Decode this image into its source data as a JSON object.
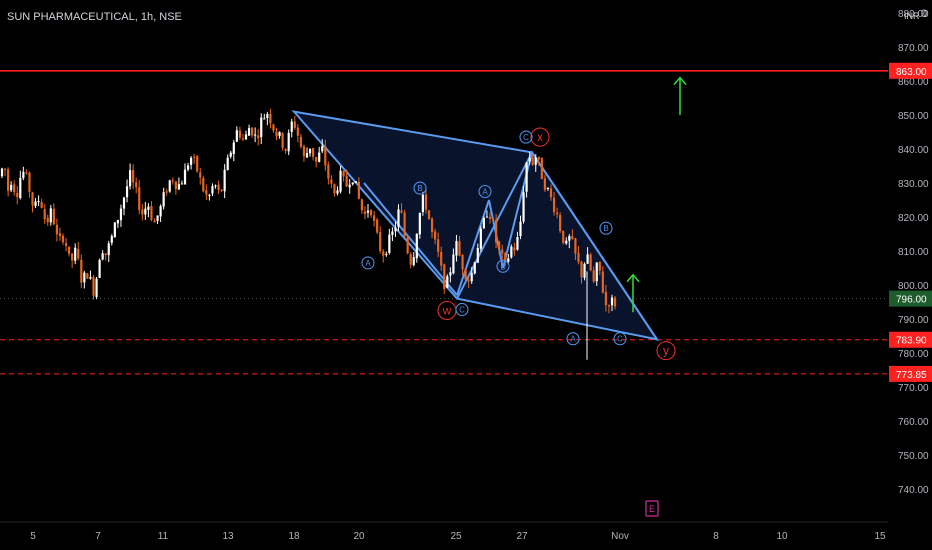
{
  "header": {
    "symbol": "SUN PHARMACEUTICAL",
    "interval": "1h",
    "exchange": "NSE",
    "separator": ", ",
    "currency": "INR",
    "corner_glyph": "0"
  },
  "colors": {
    "background": "#000000",
    "bull": "#ffffff",
    "bear": "#e8651d",
    "pattern_line": "#5a9bf0",
    "pattern_fill": "#0a1530",
    "resistance": "#ff2020",
    "arrow": "#33dd44",
    "last_price_bg": "#1d5d2c",
    "axis_text": "#b2b5be",
    "wave_red": "#e0302a",
    "wave_blue": "#4d8fe8",
    "event_marker": "#d0309a"
  },
  "chart_data": {
    "type": "candlestick",
    "y_axis": {
      "min": 730,
      "max": 878,
      "ticks": [
        740,
        750,
        760,
        770,
        780,
        790,
        800,
        810,
        820,
        830,
        840,
        850,
        860,
        870,
        880
      ]
    },
    "x_axis": {
      "labels": [
        "5",
        "7",
        "11",
        "13",
        "18",
        "20",
        "25",
        "27",
        "Nov",
        "8",
        "10",
        "15"
      ]
    },
    "price_labels": [
      {
        "text": "863.00",
        "value": 863.0,
        "style": "solid-red"
      },
      {
        "text": "796.00",
        "value": 796.0,
        "style": "last-price"
      },
      {
        "text": "783.90",
        "value": 783.9,
        "style": "dashed-red"
      },
      {
        "text": "773.85",
        "value": 773.85,
        "style": "dashed-red"
      }
    ],
    "horizontal_levels": [
      {
        "value": 863.0,
        "style": "solid"
      },
      {
        "value": 783.9,
        "style": "dashed"
      },
      {
        "value": 773.85,
        "style": "dashed"
      },
      {
        "value": 796.0,
        "style": "dotted-grey"
      }
    ],
    "candle_path": [
      [
        0,
        832
      ],
      [
        4,
        836
      ],
      [
        8,
        828
      ],
      [
        12,
        832
      ],
      [
        16,
        826
      ],
      [
        22,
        834
      ],
      [
        28,
        830
      ],
      [
        34,
        822
      ],
      [
        40,
        826
      ],
      [
        46,
        818
      ],
      [
        52,
        822
      ],
      [
        58,
        812
      ],
      [
        64,
        815
      ],
      [
        70,
        806
      ],
      [
        76,
        810
      ],
      [
        82,
        801
      ],
      [
        88,
        804
      ],
      [
        93,
        798
      ],
      [
        97,
        803
      ],
      [
        101,
        812
      ],
      [
        106,
        809
      ],
      [
        112,
        814
      ],
      [
        118,
        820
      ],
      [
        124,
        826
      ],
      [
        130,
        832
      ],
      [
        136,
        827
      ],
      [
        142,
        821
      ],
      [
        148,
        824
      ],
      [
        154,
        818
      ],
      [
        160,
        822
      ],
      [
        166,
        828
      ],
      [
        172,
        832
      ],
      [
        178,
        829
      ],
      [
        184,
        832
      ],
      [
        190,
        838
      ],
      [
        196,
        835
      ],
      [
        202,
        829
      ],
      [
        208,
        825
      ],
      [
        214,
        830
      ],
      [
        220,
        826
      ],
      [
        226,
        834
      ],
      [
        232,
        841
      ],
      [
        238,
        846
      ],
      [
        244,
        842
      ],
      [
        250,
        847
      ],
      [
        256,
        843
      ],
      [
        262,
        849
      ],
      [
        268,
        851
      ],
      [
        274,
        846
      ],
      [
        280,
        843
      ],
      [
        286,
        840
      ],
      [
        293,
        849
      ],
      [
        298,
        844
      ],
      [
        304,
        837
      ],
      [
        310,
        841
      ],
      [
        316,
        836
      ],
      [
        322,
        840
      ],
      [
        328,
        832
      ],
      [
        334,
        826
      ],
      [
        340,
        832
      ],
      [
        346,
        829
      ],
      [
        352,
        833
      ],
      [
        358,
        826
      ],
      [
        364,
        820
      ],
      [
        370,
        824
      ],
      [
        376,
        815
      ],
      [
        382,
        809
      ],
      [
        388,
        812
      ],
      [
        394,
        816
      ],
      [
        400,
        823
      ],
      [
        406,
        812
      ],
      [
        412,
        806
      ],
      [
        418,
        819
      ],
      [
        424,
        826
      ],
      [
        428,
        821
      ],
      [
        432,
        815
      ],
      [
        438,
        809
      ],
      [
        442,
        803
      ],
      [
        446,
        799
      ],
      [
        450,
        804
      ],
      [
        455,
        813
      ],
      [
        460,
        808
      ],
      [
        465,
        804
      ],
      [
        470,
        801
      ],
      [
        476,
        810
      ],
      [
        482,
        816
      ],
      [
        488,
        823
      ],
      [
        492,
        819
      ],
      [
        496,
        813
      ],
      [
        500,
        809
      ],
      [
        506,
        805
      ],
      [
        510,
        811
      ],
      [
        516,
        811
      ],
      [
        520,
        817
      ],
      [
        524,
        830
      ],
      [
        528,
        839
      ],
      [
        532,
        836
      ],
      [
        536,
        838
      ],
      [
        540,
        834
      ],
      [
        546,
        829
      ],
      [
        550,
        826
      ],
      [
        556,
        822
      ],
      [
        560,
        817
      ],
      [
        566,
        811
      ],
      [
        570,
        814
      ],
      [
        576,
        808
      ],
      [
        582,
        803
      ],
      [
        586,
        809
      ],
      [
        590,
        805
      ],
      [
        594,
        800
      ],
      [
        598,
        807
      ],
      [
        602,
        800
      ],
      [
        606,
        794
      ],
      [
        610,
        796
      ],
      [
        614,
        794
      ],
      [
        618,
        797
      ]
    ],
    "pattern": {
      "polygon": [
        [
          294,
          851
        ],
        [
          532,
          839
        ],
        [
          657,
          784
        ],
        [
          457,
          796
        ]
      ],
      "inner_polyline": [
        [
          457,
          796
        ],
        [
          532,
          839
        ],
        [
          657,
          784
        ]
      ],
      "wave_lines": [
        [
          [
            364,
            830
          ],
          [
            457,
            797
          ]
        ],
        [
          [
            457,
            797
          ],
          [
            489,
            825
          ]
        ],
        [
          [
            489,
            825
          ],
          [
            503,
            805
          ]
        ],
        [
          [
            503,
            805
          ],
          [
            532,
            839
          ]
        ]
      ]
    },
    "wave_labels": [
      {
        "text": "x",
        "color": "red",
        "x": 540,
        "y": 843.5
      },
      {
        "text": "w",
        "color": "red",
        "x": 447,
        "y": 792.5
      },
      {
        "text": "y",
        "color": "red",
        "x": 666,
        "y": 780.7
      },
      {
        "text": "C",
        "color": "blue",
        "x": 526,
        "y": 843.5
      },
      {
        "text": "A",
        "color": "blue",
        "x": 368,
        "y": 806.5
      },
      {
        "text": "B",
        "color": "blue",
        "x": 420,
        "y": 828.5
      },
      {
        "text": "C",
        "color": "blue",
        "x": 462,
        "y": 792.8
      },
      {
        "text": "A",
        "color": "blue",
        "x": 485,
        "y": 827.5
      },
      {
        "text": "B",
        "color": "blue",
        "x": 503,
        "y": 805.5
      },
      {
        "text": "A",
        "color": "blue",
        "x": 573,
        "y": 784.2
      },
      {
        "text": "B",
        "color": "blue",
        "x": 606,
        "y": 816.7
      },
      {
        "text": "C",
        "color": "blue",
        "x": 620,
        "y": 784.2
      }
    ],
    "arrows": [
      {
        "x": 680,
        "from": 850,
        "to": 861
      },
      {
        "x": 633,
        "from": 792,
        "to": 803
      }
    ],
    "event_marker": {
      "text": "E",
      "x": 652
    }
  }
}
